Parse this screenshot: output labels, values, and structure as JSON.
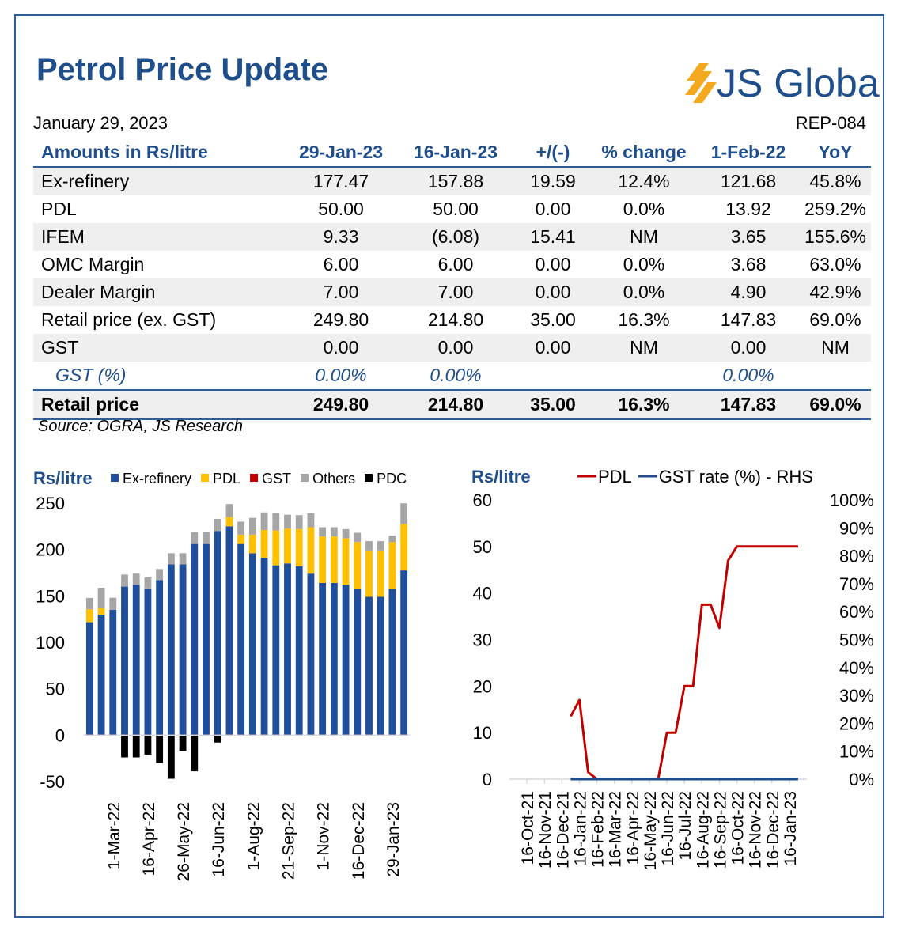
{
  "header": {
    "title": "Petrol Price Update",
    "brand": "JS Global",
    "date": "January 29, 2023",
    "report_id": "REP-084"
  },
  "table": {
    "headers": [
      "Amounts in Rs/litre",
      "29-Jan-23",
      "16-Jan-23",
      "+/(-)",
      "% change",
      "1-Feb-22",
      "YoY"
    ],
    "rows": [
      {
        "cells": [
          "Ex-refinery",
          "177.47",
          "157.88",
          "19.59",
          "12.4%",
          "121.68",
          "45.8%"
        ],
        "style": "shade"
      },
      {
        "cells": [
          "PDL",
          "50.00",
          "50.00",
          "0.00",
          "0.0%",
          "13.92",
          "259.2%"
        ],
        "style": ""
      },
      {
        "cells": [
          "IFEM",
          "9.33",
          "(6.08)",
          "15.41",
          "NM",
          "3.65",
          "155.6%"
        ],
        "style": "shade"
      },
      {
        "cells": [
          "OMC Margin",
          "6.00",
          "6.00",
          "0.00",
          "0.0%",
          "3.68",
          "63.0%"
        ],
        "style": ""
      },
      {
        "cells": [
          "Dealer Margin",
          "7.00",
          "7.00",
          "0.00",
          "0.0%",
          "4.90",
          "42.9%"
        ],
        "style": "shade"
      },
      {
        "cells": [
          "Retail price (ex. GST)",
          "249.80",
          "214.80",
          "35.00",
          "16.3%",
          "147.83",
          "69.0%"
        ],
        "style": ""
      },
      {
        "cells": [
          "GST",
          "0.00",
          "0.00",
          "0.00",
          "NM",
          "0.00",
          "NM"
        ],
        "style": "shade"
      },
      {
        "cells": [
          "GST (%)",
          "0.00%",
          "0.00%",
          "",
          "",
          "0.00%",
          ""
        ],
        "style": "pct"
      },
      {
        "cells": [
          "Retail price",
          "249.80",
          "214.80",
          "35.00",
          "16.3%",
          "147.83",
          "69.0%"
        ],
        "style": "total"
      }
    ]
  },
  "source": "Source: OGRA,  JS Research",
  "colors": {
    "navy": "#1f4e8c",
    "ex_refinery": "#1f4e9a",
    "pdl": "#ffc000",
    "gst": "#c00000",
    "others": "#a6a6a6",
    "pdc": "#000000",
    "pdl_line": "#c00000",
    "gst_line": "#1f4e8c",
    "logo_stripe": "#f4a81d"
  },
  "chart_data": [
    {
      "type": "bar",
      "stacked": true,
      "ylabel": "Rs/litre",
      "ylim": [
        -50,
        250
      ],
      "yticks": [
        -50,
        0,
        50,
        100,
        150,
        200,
        250
      ],
      "legend_position": "top",
      "x_tick_labels": [
        "1-Mar-22",
        "16-Apr-22",
        "26-May-22",
        "16-Jun-22",
        "1-Aug-22",
        "21-Sep-22",
        "1-Nov-22",
        "16-Dec-22",
        "29-Jan-23"
      ],
      "x_tick_indices": [
        2,
        5,
        8,
        11,
        14,
        17,
        20,
        23,
        26
      ],
      "grid": false,
      "series": [
        {
          "name": "Ex-refinery",
          "color": "#1f4e9a",
          "values": [
            121.68,
            129.8,
            135,
            160,
            162,
            158,
            167,
            184,
            184,
            206,
            206,
            220,
            225,
            206,
            196,
            191,
            183,
            185,
            182,
            174,
            164,
            164,
            162,
            158,
            149,
            149,
            157.88,
            177.47
          ]
        },
        {
          "name": "PDL",
          "color": "#ffc000",
          "values": [
            13.92,
            7,
            0,
            0,
            0,
            0,
            0,
            0,
            0,
            0,
            0,
            0,
            10,
            10,
            20,
            30,
            37.5,
            37.5,
            40,
            50,
            50,
            50,
            50,
            50,
            50,
            50,
            50,
            50
          ]
        },
        {
          "name": "GST",
          "color": "#c00000",
          "values": [
            0,
            0,
            0,
            0,
            0,
            0,
            0,
            0,
            0,
            0,
            0,
            0,
            0,
            0,
            0,
            0,
            0,
            0,
            0,
            0,
            0,
            0,
            0,
            0,
            0,
            0,
            0,
            0
          ]
        },
        {
          "name": "Others",
          "color": "#a6a6a6",
          "values": [
            12.23,
            22,
            13,
            13,
            12,
            12,
            12,
            12,
            12,
            13,
            13,
            13,
            14,
            14,
            18,
            19,
            19,
            15,
            15,
            15,
            10,
            10,
            10,
            10,
            10,
            10,
            7,
            22.33
          ]
        },
        {
          "name": "PDC",
          "color": "#000000",
          "values": [
            0,
            0,
            0,
            -24,
            -24,
            -21,
            -30,
            -47,
            -17,
            -39,
            0,
            -8,
            0,
            0,
            0,
            0,
            0,
            0,
            0,
            0,
            0,
            0,
            0,
            0,
            0,
            0,
            0,
            0
          ]
        }
      ]
    },
    {
      "type": "line",
      "ylabel": "Rs/litre",
      "ylim": [
        0,
        60
      ],
      "yticks": [
        0,
        10,
        20,
        30,
        40,
        50,
        60
      ],
      "y2label": "",
      "y2lim": [
        0,
        100
      ],
      "y2ticks": [
        "0%",
        "10%",
        "20%",
        "30%",
        "40%",
        "50%",
        "60%",
        "70%",
        "80%",
        "90%",
        "100%"
      ],
      "legend_position": "top",
      "grid": false,
      "x_tick_labels": [
        "16-Oct-21",
        "16-Nov-21",
        "16-Dec-21",
        "16-Jan-22",
        "16-Feb-22",
        "16-Mar-22",
        "16-Apr-22",
        "16-May-22",
        "16-Jun-22",
        "16-Jul-22",
        "16-Aug-22",
        "16-Sep-22",
        "16-Oct-22",
        "16-Nov-22",
        "16-Dec-22",
        "16-Jan-23"
      ],
      "series": [
        {
          "name": "PDL",
          "axis": "left",
          "color": "#c00000",
          "x": [
            3.5,
            4,
            4.5,
            5,
            6,
            7,
            8,
            8.5,
            9,
            9.5,
            10,
            10.5,
            11,
            11.5,
            12,
            12.5,
            13,
            14,
            15,
            16.5
          ],
          "values": [
            13.5,
            17,
            1.5,
            0,
            0,
            0,
            0,
            0,
            10,
            10,
            20,
            20,
            37.5,
            37.5,
            32.5,
            47,
            50,
            50,
            50,
            50
          ]
        },
        {
          "name": "GST rate (%) - RHS",
          "axis": "right",
          "color": "#1f4e8c",
          "x": [
            3.5,
            16.5
          ],
          "values": [
            0,
            0
          ]
        }
      ]
    }
  ]
}
